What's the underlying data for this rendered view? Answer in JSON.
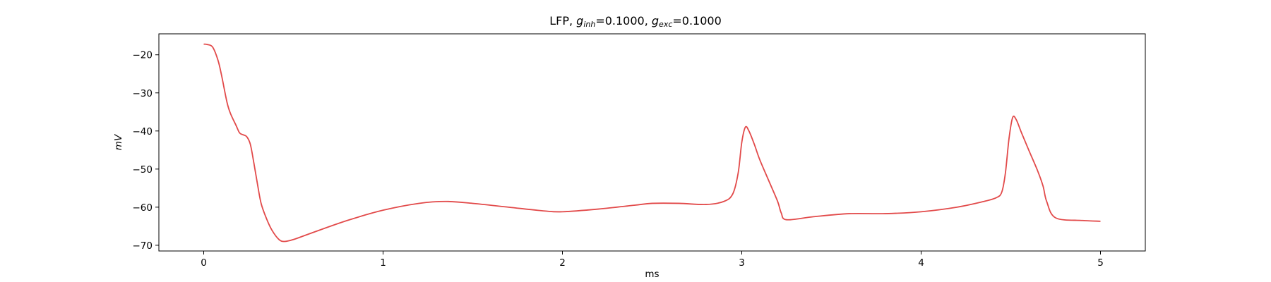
{
  "chart_data": {
    "type": "line",
    "title": {
      "prefix": "LFP, ",
      "g1_symbol": "g",
      "g1_sub": "inh",
      "g1_value": "=0.1000, ",
      "g2_symbol": "g",
      "g2_sub": "exc",
      "g2_value": "=0.1000"
    },
    "xlabel": "ms",
    "ylabel": "mV",
    "xlim": [
      -0.25,
      5.25
    ],
    "ylim": [
      -71.5,
      -14.5
    ],
    "x_ticks": [
      0,
      1,
      2,
      3,
      4,
      5
    ],
    "x_tick_labels": [
      "0",
      "1",
      "2",
      "3",
      "4",
      "5"
    ],
    "y_ticks": [
      -70,
      -60,
      -50,
      -40,
      -30,
      -20
    ],
    "y_tick_labels": [
      "−70",
      "−60",
      "−50",
      "−40",
      "−30",
      "−20"
    ],
    "grid": false,
    "series": [
      {
        "color": "#e24a4a",
        "x": [
          0,
          0.02,
          0.05,
          0.08,
          0.1,
          0.13,
          0.15,
          0.18,
          0.2,
          0.22,
          0.24,
          0.26,
          0.28,
          0.3,
          0.32,
          0.35,
          0.38,
          0.42,
          0.45,
          0.5,
          0.6,
          0.8,
          1.0,
          1.2,
          1.35,
          1.5,
          1.7,
          1.9,
          2.0,
          2.2,
          2.4,
          2.5,
          2.65,
          2.8,
          2.9,
          2.95,
          2.98,
          3.0,
          3.02,
          3.04,
          3.07,
          3.1,
          3.15,
          3.2,
          3.22,
          3.25,
          3.4,
          3.6,
          3.8,
          4.0,
          4.2,
          4.35,
          4.42,
          4.45,
          4.47,
          4.49,
          4.51,
          4.53,
          4.56,
          4.6,
          4.65,
          4.68,
          4.7,
          4.75,
          4.9,
          5.0
        ],
        "y": [
          -17.2,
          -17.3,
          -18.0,
          -21.5,
          -25.5,
          -32.5,
          -35.5,
          -38.5,
          -40.5,
          -41.0,
          -41.5,
          -43.5,
          -48.5,
          -54.0,
          -59.0,
          -63.0,
          -66.0,
          -68.5,
          -69.0,
          -68.5,
          -66.8,
          -63.5,
          -60.8,
          -59.0,
          -58.5,
          -59.0,
          -60.0,
          -61.0,
          -61.2,
          -60.5,
          -59.5,
          -59.0,
          -59.0,
          -59.3,
          -58.5,
          -56.5,
          -51.0,
          -43.0,
          -39.0,
          -40.0,
          -43.5,
          -47.5,
          -53.0,
          -58.5,
          -61.5,
          -63.3,
          -62.5,
          -61.7,
          -61.7,
          -61.2,
          -60.0,
          -58.5,
          -57.5,
          -56.0,
          -51.0,
          -42.0,
          -36.5,
          -37.0,
          -40.5,
          -45.0,
          -50.5,
          -54.5,
          -58.5,
          -62.8,
          -63.5,
          -63.7
        ]
      }
    ]
  }
}
